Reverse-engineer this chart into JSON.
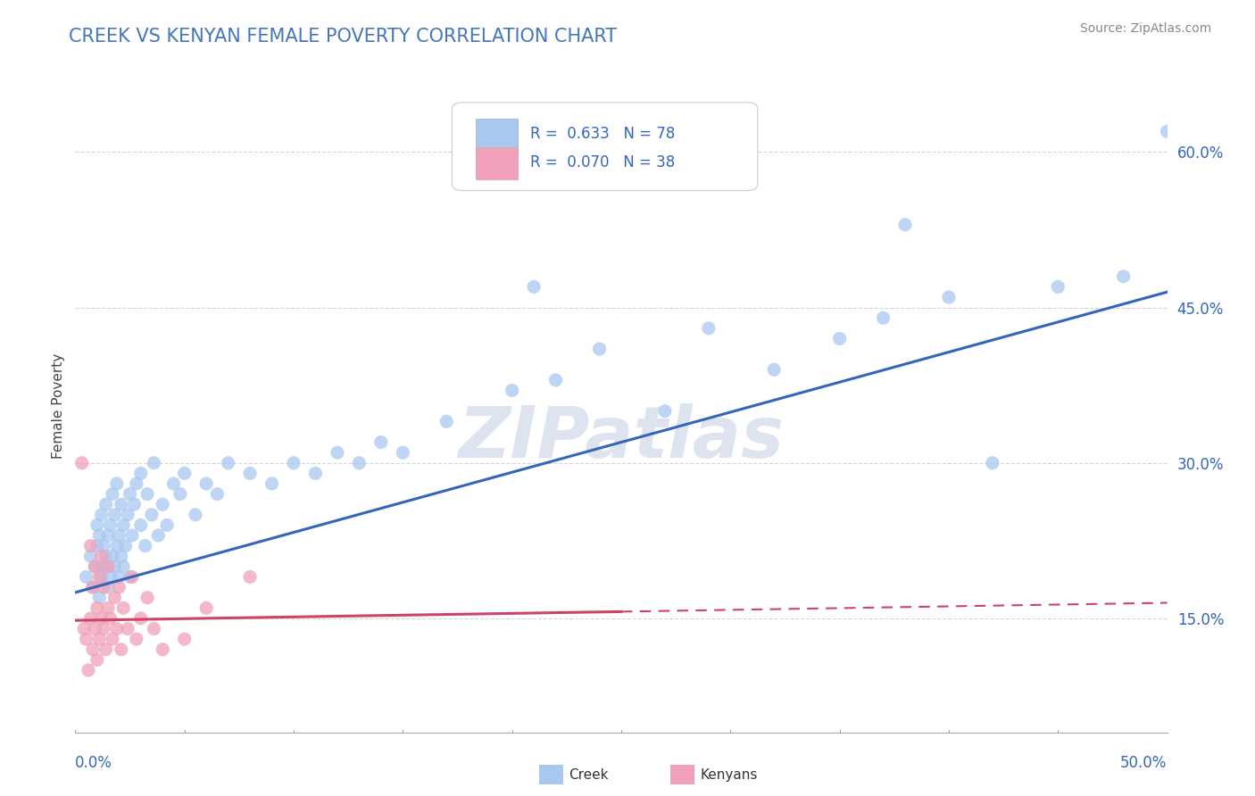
{
  "title": "CREEK VS KENYAN FEMALE POVERTY CORRELATION CHART",
  "source_text": "Source: ZipAtlas.com",
  "ylabel": "Female Poverty",
  "ytick_labels": [
    "15.0%",
    "30.0%",
    "45.0%",
    "60.0%"
  ],
  "ytick_values": [
    0.15,
    0.3,
    0.45,
    0.6
  ],
  "xlim": [
    0.0,
    0.5
  ],
  "ylim": [
    0.04,
    0.67
  ],
  "creek_R": 0.633,
  "creek_N": 78,
  "kenyan_R": 0.07,
  "kenyan_N": 38,
  "creek_color": "#a8c8f0",
  "kenyan_color": "#f0a0b8",
  "creek_line_color": "#3366bb",
  "kenyan_line_color": "#cc4466",
  "background_color": "#ffffff",
  "grid_color": "#cccccc",
  "watermark": "ZIPatlas",
  "watermark_color": "#dde4f0",
  "title_color": "#4477bb",
  "axis_label_color": "#3366bb",
  "creek_scatter_x": [
    0.005,
    0.007,
    0.008,
    0.009,
    0.01,
    0.01,
    0.011,
    0.011,
    0.012,
    0.012,
    0.013,
    0.013,
    0.014,
    0.014,
    0.015,
    0.015,
    0.015,
    0.016,
    0.016,
    0.017,
    0.017,
    0.018,
    0.018,
    0.019,
    0.019,
    0.02,
    0.02,
    0.021,
    0.021,
    0.022,
    0.022,
    0.023,
    0.024,
    0.025,
    0.025,
    0.026,
    0.027,
    0.028,
    0.03,
    0.03,
    0.032,
    0.033,
    0.035,
    0.036,
    0.038,
    0.04,
    0.042,
    0.045,
    0.048,
    0.05,
    0.055,
    0.06,
    0.065,
    0.07,
    0.08,
    0.09,
    0.1,
    0.11,
    0.12,
    0.13,
    0.14,
    0.15,
    0.17,
    0.2,
    0.22,
    0.24,
    0.27,
    0.29,
    0.32,
    0.35,
    0.37,
    0.4,
    0.42,
    0.21,
    0.45,
    0.38,
    0.48,
    0.5
  ],
  "creek_scatter_y": [
    0.19,
    0.21,
    0.18,
    0.2,
    0.22,
    0.24,
    0.17,
    0.23,
    0.19,
    0.25,
    0.2,
    0.22,
    0.21,
    0.26,
    0.18,
    0.2,
    0.23,
    0.19,
    0.24,
    0.21,
    0.27,
    0.2,
    0.25,
    0.22,
    0.28,
    0.19,
    0.23,
    0.21,
    0.26,
    0.2,
    0.24,
    0.22,
    0.25,
    0.19,
    0.27,
    0.23,
    0.26,
    0.28,
    0.24,
    0.29,
    0.22,
    0.27,
    0.25,
    0.3,
    0.23,
    0.26,
    0.24,
    0.28,
    0.27,
    0.29,
    0.25,
    0.28,
    0.27,
    0.3,
    0.29,
    0.28,
    0.3,
    0.29,
    0.31,
    0.3,
    0.32,
    0.31,
    0.34,
    0.37,
    0.38,
    0.41,
    0.35,
    0.43,
    0.39,
    0.42,
    0.44,
    0.46,
    0.3,
    0.47,
    0.47,
    0.53,
    0.48,
    0.62
  ],
  "kenyan_scatter_x": [
    0.003,
    0.004,
    0.005,
    0.006,
    0.007,
    0.007,
    0.008,
    0.008,
    0.009,
    0.009,
    0.01,
    0.01,
    0.011,
    0.011,
    0.012,
    0.012,
    0.013,
    0.013,
    0.014,
    0.015,
    0.015,
    0.016,
    0.017,
    0.018,
    0.019,
    0.02,
    0.021,
    0.022,
    0.024,
    0.026,
    0.028,
    0.03,
    0.033,
    0.036,
    0.04,
    0.05,
    0.06,
    0.08
  ],
  "kenyan_scatter_y": [
    0.3,
    0.14,
    0.13,
    0.1,
    0.15,
    0.22,
    0.12,
    0.18,
    0.14,
    0.2,
    0.11,
    0.16,
    0.13,
    0.19,
    0.15,
    0.21,
    0.14,
    0.18,
    0.12,
    0.16,
    0.2,
    0.15,
    0.13,
    0.17,
    0.14,
    0.18,
    0.12,
    0.16,
    0.14,
    0.19,
    0.13,
    0.15,
    0.17,
    0.14,
    0.12,
    0.13,
    0.16,
    0.19
  ],
  "creek_trendline_x0": 0.0,
  "creek_trendline_y0": 0.175,
  "creek_trendline_x1": 0.5,
  "creek_trendline_y1": 0.465,
  "kenyan_trendline_x0": 0.0,
  "kenyan_trendline_y0": 0.148,
  "kenyan_trendline_x1": 0.5,
  "kenyan_trendline_y1": 0.165
}
